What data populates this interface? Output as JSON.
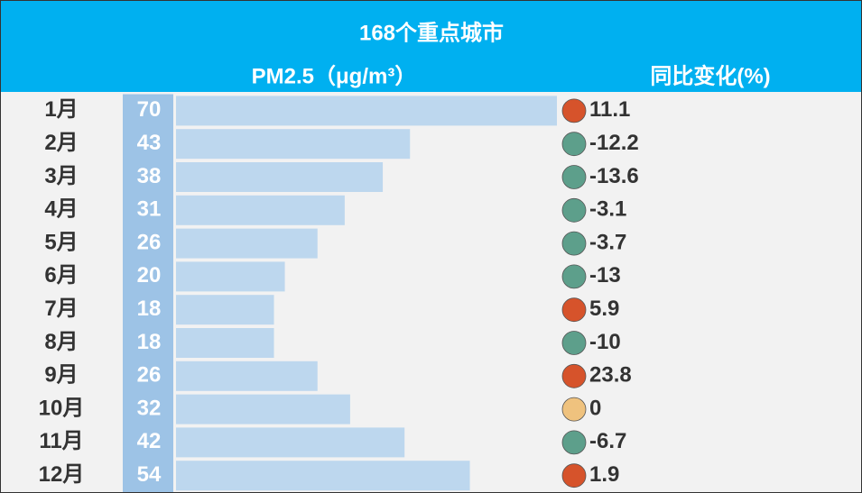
{
  "chart_data": {
    "type": "bar",
    "title": "168个重点城市",
    "subtitle": "PM2.5（μg/m³）",
    "change_title": "同比变化(%)",
    "categories": [
      "1月",
      "2月",
      "3月",
      "4月",
      "5月",
      "6月",
      "7月",
      "8月",
      "9月",
      "10月",
      "11月",
      "12月"
    ],
    "values": [
      70,
      43,
      38,
      31,
      26,
      20,
      18,
      18,
      26,
      32,
      42,
      54
    ],
    "color": "#bdd7ee",
    "label_band_color": "#9dc3e6",
    "changes": [
      11.1,
      -12.2,
      -13.6,
      -3.1,
      -3.7,
      -13,
      5.9,
      -10,
      23.8,
      0,
      -6.7,
      1.9
    ],
    "change_colors": {
      "positive": "#d6532b",
      "negative": "#5d9f8b",
      "zero": "#efc27e"
    }
  }
}
